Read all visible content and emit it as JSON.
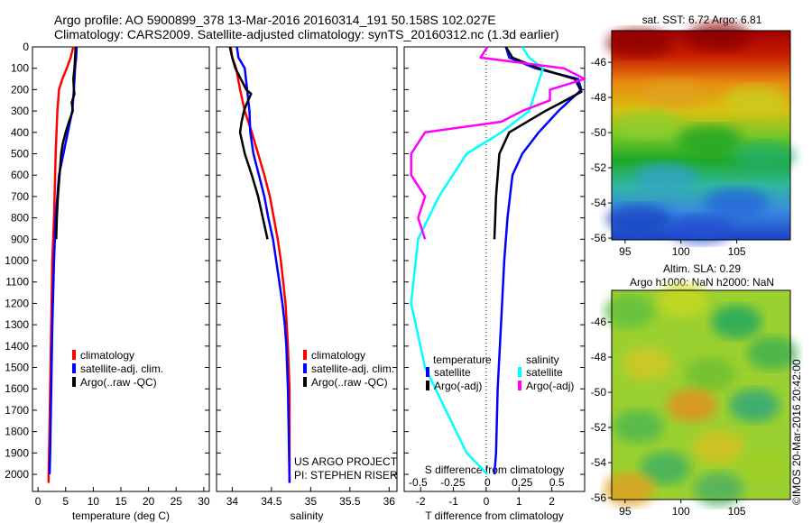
{
  "header": {
    "title_line1": "Argo profile: AO 5900899_378 13-Mar-2016 20160314_191 50.158S 102.027E",
    "title_line2": "Climatology: CARS2009. Satellite-adjusted climatology: synTS_20160312.nc (1.3d earlier)"
  },
  "depth_ticks": [
    "0",
    "100",
    "200",
    "300",
    "400",
    "500",
    "600",
    "700",
    "800",
    "900",
    "1000",
    "1100",
    "1200",
    "1300",
    "1400",
    "1500",
    "1600",
    "1700",
    "1800",
    "1900",
    "2000"
  ],
  "colors": {
    "climatology": "#ff0000",
    "satellite": "#0000ff",
    "argo": "#000000",
    "salinity_sat": "#00ffff",
    "salinity_argo": "#ff00ff"
  },
  "chart_data": [
    {
      "type": "line",
      "panel": "temperature",
      "xlabel": "temperature (deg C)",
      "xlim": [
        -1,
        31
      ],
      "ylim": [
        2080,
        0
      ],
      "x_ticks": [
        "0",
        "5",
        "10",
        "15",
        "20",
        "25",
        "30"
      ],
      "legend": [
        "climatology",
        "satellite-adj. clim.",
        "Argo(..raw -QC)"
      ],
      "series": [
        {
          "name": "climatology",
          "color": "#ff0000",
          "points": [
            [
              6.4,
              0
            ],
            [
              5.9,
              50
            ],
            [
              5.2,
              100
            ],
            [
              4.4,
              150
            ],
            [
              3.8,
              200
            ],
            [
              3.5,
              300
            ],
            [
              3.2,
              500
            ],
            [
              2.9,
              800
            ],
            [
              2.6,
              1000
            ],
            [
              2.4,
              1300
            ],
            [
              2.2,
              1600
            ],
            [
              2.0,
              1900
            ],
            [
              1.9,
              2040
            ]
          ]
        },
        {
          "name": "satellite-adj. clim.",
          "color": "#0000ff",
          "points": [
            [
              7.0,
              0
            ],
            [
              6.9,
              50
            ],
            [
              6.7,
              100
            ],
            [
              6.5,
              200
            ],
            [
              6.2,
              300
            ],
            [
              5.4,
              400
            ],
            [
              4.6,
              500
            ],
            [
              3.8,
              600
            ],
            [
              3.2,
              800
            ],
            [
              2.9,
              1000
            ],
            [
              2.6,
              1300
            ],
            [
              2.4,
              1600
            ],
            [
              2.2,
              1900
            ],
            [
              2.1,
              2000
            ]
          ]
        },
        {
          "name": "Argo(..raw -QC)",
          "color": "#000000",
          "points": [
            [
              6.8,
              0
            ],
            [
              6.7,
              50
            ],
            [
              6.6,
              100
            ],
            [
              6.4,
              150
            ],
            [
              6.5,
              200
            ],
            [
              6.6,
              220
            ],
            [
              6.1,
              260
            ],
            [
              6.3,
              300
            ],
            [
              5.6,
              350
            ],
            [
              5.0,
              400
            ],
            [
              4.5,
              450
            ],
            [
              4.2,
              500
            ],
            [
              3.9,
              600
            ],
            [
              3.6,
              700
            ],
            [
              3.4,
              800
            ],
            [
              3.3,
              900
            ]
          ]
        }
      ]
    },
    {
      "type": "line",
      "panel": "salinity",
      "xlabel": "salinity",
      "xlim": [
        33.8,
        36.1
      ],
      "ylim": [
        2080,
        0
      ],
      "x_ticks": [
        "34",
        "34.5",
        "35",
        "35.5",
        "36"
      ],
      "legend": [
        "climatology",
        "satellite-adj. clim.",
        "Argo(..raw -QC)"
      ],
      "annotation": [
        "US ARGO PROJECT",
        "PI: STEPHEN RISER"
      ],
      "series": [
        {
          "name": "climatology",
          "color": "#ff0000",
          "points": [
            [
              33.98,
              0
            ],
            [
              34.0,
              50
            ],
            [
              34.05,
              100
            ],
            [
              34.1,
              200
            ],
            [
              34.16,
              300
            ],
            [
              34.25,
              400
            ],
            [
              34.33,
              500
            ],
            [
              34.41,
              600
            ],
            [
              34.48,
              700
            ],
            [
              34.53,
              800
            ],
            [
              34.58,
              900
            ],
            [
              34.62,
              1000
            ],
            [
              34.65,
              1100
            ],
            [
              34.68,
              1200
            ],
            [
              34.71,
              1400
            ],
            [
              34.73,
              1600
            ],
            [
              34.73,
              2040
            ]
          ]
        },
        {
          "name": "satellite-adj. clim.",
          "color": "#0000ff",
          "points": [
            [
              34.06,
              0
            ],
            [
              34.08,
              50
            ],
            [
              34.16,
              100
            ],
            [
              34.19,
              200
            ],
            [
              34.22,
              300
            ],
            [
              34.23,
              400
            ],
            [
              34.27,
              500
            ],
            [
              34.34,
              600
            ],
            [
              34.41,
              700
            ],
            [
              34.46,
              800
            ],
            [
              34.52,
              900
            ],
            [
              34.56,
              1000
            ],
            [
              34.6,
              1100
            ],
            [
              34.64,
              1200
            ],
            [
              34.67,
              1300
            ],
            [
              34.69,
              1400
            ],
            [
              34.71,
              1600
            ],
            [
              34.72,
              1800
            ],
            [
              34.73,
              2040
            ]
          ]
        },
        {
          "name": "Argo(..raw -QC)",
          "color": "#000000",
          "points": [
            [
              33.97,
              0
            ],
            [
              34.0,
              50
            ],
            [
              34.04,
              100
            ],
            [
              34.18,
              200
            ],
            [
              34.24,
              220
            ],
            [
              34.18,
              270
            ],
            [
              34.15,
              300
            ],
            [
              34.12,
              350
            ],
            [
              34.1,
              400
            ],
            [
              34.16,
              500
            ],
            [
              34.25,
              600
            ],
            [
              34.33,
              700
            ],
            [
              34.39,
              800
            ],
            [
              34.45,
              900
            ]
          ]
        }
      ]
    },
    {
      "type": "line",
      "panel": "difference",
      "xlabel": "T difference from climatology",
      "top_xlabel": "S difference from climatology",
      "xlim": [
        -2.5,
        3.0
      ],
      "ylim": [
        2080,
        0
      ],
      "x_ticks": [
        "-2",
        "-1",
        "0",
        "1",
        "2"
      ],
      "top_x_ticks": [
        "-0.5",
        "-0.25",
        "0",
        "0.25",
        "0.5"
      ],
      "legend_headers": [
        "temperature",
        "salinity"
      ],
      "legend": [
        "satellite",
        "Argo(-adj)",
        "satellite",
        "Argo(-adj)"
      ],
      "series": [
        {
          "name": "temperature satellite",
          "color": "#0000ff",
          "points": [
            [
              0.6,
              0
            ],
            [
              0.7,
              50
            ],
            [
              1.5,
              100
            ],
            [
              2.8,
              150
            ],
            [
              2.9,
              200
            ],
            [
              2.2,
              300
            ],
            [
              1.6,
              400
            ],
            [
              1.1,
              500
            ],
            [
              0.8,
              600
            ],
            [
              0.65,
              800
            ],
            [
              0.55,
              1000
            ],
            [
              0.45,
              1300
            ],
            [
              0.35,
              1600
            ],
            [
              0.3,
              1900
            ],
            [
              0.25,
              2000
            ]
          ]
        },
        {
          "name": "temperature Argo(-adj)",
          "color": "#000000",
          "points": [
            [
              0.6,
              0
            ],
            [
              0.8,
              50
            ],
            [
              1.6,
              100
            ],
            [
              2.7,
              150
            ],
            [
              2.9,
              210
            ],
            [
              2.3,
              260
            ],
            [
              1.8,
              300
            ],
            [
              0.7,
              400
            ],
            [
              0.4,
              500
            ],
            [
              0.3,
              700
            ],
            [
              0.25,
              900
            ]
          ]
        },
        {
          "name": "salinity satellite",
          "color": "#00ffff",
          "points": [
            [
              0.25,
              0
            ],
            [
              0.3,
              50
            ],
            [
              0.4,
              100
            ],
            [
              0.35,
              200
            ],
            [
              0.3,
              300
            ],
            [
              0.1,
              400
            ],
            [
              -0.15,
              500
            ],
            [
              -0.35,
              700
            ],
            [
              -0.5,
              900
            ],
            [
              -0.55,
              1200
            ],
            [
              -0.45,
              1500
            ],
            [
              -0.3,
              1700
            ],
            [
              -0.15,
              1900
            ],
            [
              0.0,
              2000
            ]
          ]
        },
        {
          "name": "salinity Argo(-adj)",
          "color": "#ff00ff",
          "points": [
            [
              0.0,
              0
            ],
            [
              -0.05,
              50
            ],
            [
              0.55,
              100
            ],
            [
              0.7,
              150
            ],
            [
              0.45,
              200
            ],
            [
              0.45,
              250
            ],
            [
              0.25,
              300
            ],
            [
              0.1,
              350
            ],
            [
              -0.45,
              400
            ],
            [
              -0.55,
              500
            ],
            [
              -0.55,
              600
            ],
            [
              -0.45,
              700
            ],
            [
              -0.5,
              800
            ],
            [
              -0.45,
              900
            ]
          ]
        }
      ]
    },
    {
      "type": "heatmap",
      "panel": "satellite SST map",
      "title": "sat. SST: 6.72  Argo: 6.81",
      "x_ticks": [
        "95",
        "100",
        "105"
      ],
      "y_ticks": [
        "-46",
        "-48",
        "-50",
        "-52",
        "-54",
        "-56"
      ]
    },
    {
      "type": "heatmap",
      "panel": "altimetry SLA map",
      "title_line1": "Altim. SLA: 0.29",
      "title_line2": "Argo h1000: NaN h2000: NaN",
      "x_ticks": [
        "95",
        "100",
        "105"
      ],
      "y_ticks": [
        "-46",
        "-48",
        "-50",
        "-52",
        "-54",
        "-56"
      ],
      "stamp": "©IMOS 20-Mar-2016 20:42:00"
    }
  ]
}
